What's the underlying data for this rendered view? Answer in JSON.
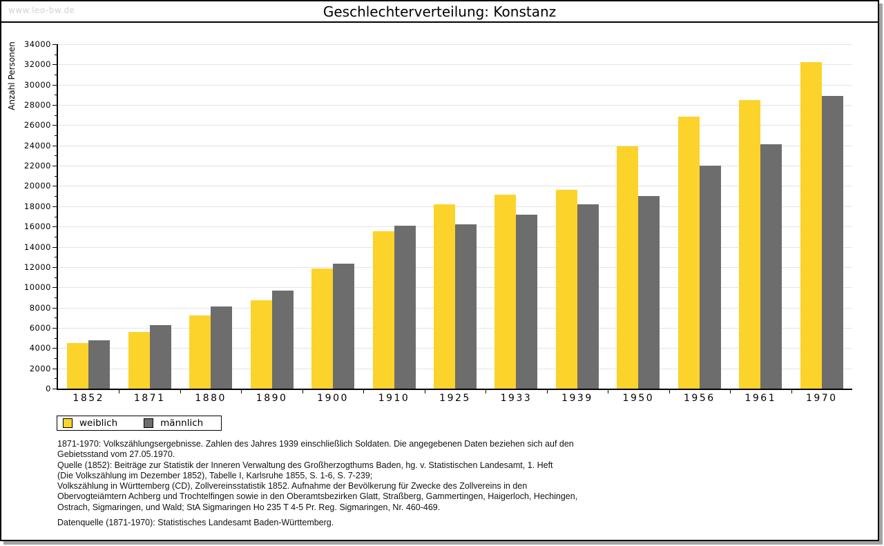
{
  "page": {
    "watermark": "www.leo-bw.de",
    "title": "Geschlechterverteilung: Konstanz"
  },
  "chart_data": {
    "type": "bar",
    "title": "Geschlechterverteilung: Konstanz",
    "xlabel": "",
    "ylabel": "Anzahl Personen",
    "categories": [
      "1852",
      "1871",
      "1880",
      "1890",
      "1900",
      "1910",
      "1925",
      "1933",
      "1939",
      "1950",
      "1956",
      "1961",
      "1970"
    ],
    "series": [
      {
        "name": "weiblich",
        "color": "#fcd32b",
        "values": [
          4500,
          5600,
          7250,
          8750,
          11850,
          15550,
          18200,
          19150,
          19650,
          23950,
          26850,
          28450,
          32250
        ]
      },
      {
        "name": "männlich",
        "color": "#6d6d6d",
        "values": [
          4800,
          6250,
          8100,
          9650,
          12300,
          16100,
          16200,
          17200,
          18200,
          19000,
          22000,
          24100,
          28900
        ]
      }
    ],
    "ylim": [
      0,
      34000
    ],
    "ytick_step": 2000,
    "yminor_step": 1000,
    "grid": true,
    "gridline_color": "#e3e3e3",
    "legend_position": "bottom-left"
  },
  "footnotes": {
    "lines": [
      "1871-1970: Volkszählungsergebnisse. Zahlen des Jahres 1939 einschließlich Soldaten. Die angegebenen Daten beziehen sich auf den",
      "Gebietsstand vom 27.05.1970.",
      "Quelle (1852): Beiträge zur Statistik der Inneren Verwaltung des Großherzogthums Baden, hg. v. Statistischen Landesamt, 1. Heft",
      "(Die Volkszählung im Dezember 1852), Tabelle I, Karlsruhe 1855, S. 1-6, S. 7-239;",
      "Volkszählung in Württemberg (CD), Zollvereinsstatistik 1852. Aufnahme der Bevölkerung für Zwecke des Zollvereins in den",
      "Obervogteiämtern Achberg und Trochtelfingen sowie in den Oberamtsbezirken Glatt, Straßberg, Gammertingen, Haigerloch, Hechingen,",
      "Ostrach, Sigmaringen, und Wald; StA Sigmaringen Ho 235 T 4-5 Pr. Reg. Sigmaringen, Nr. 460-469."
    ],
    "datasource": "Datenquelle (1871-1970): Statistisches Landesamt Baden-Württemberg."
  }
}
